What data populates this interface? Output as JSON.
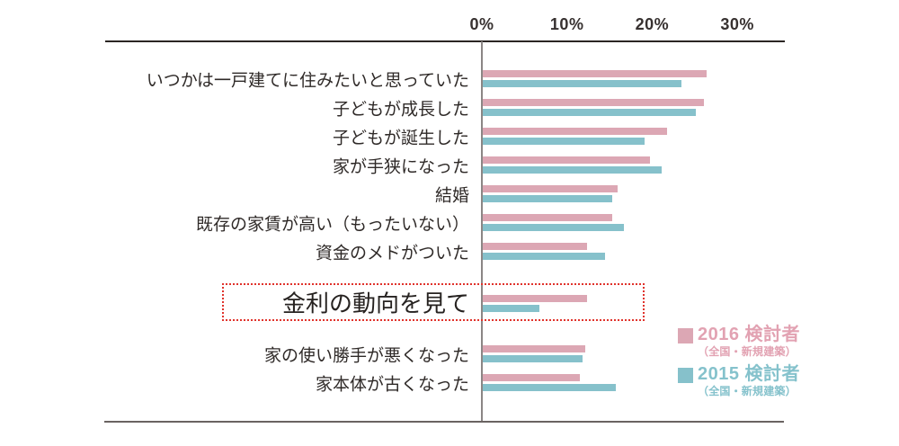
{
  "chart_data": {
    "type": "bar",
    "orientation": "horizontal",
    "title": "",
    "xlabel": "",
    "ylabel": "",
    "axis_ticks": [
      {
        "label": "0%",
        "value": 0
      },
      {
        "label": "10%",
        "value": 10
      },
      {
        "label": "20%",
        "value": 20
      },
      {
        "label": "30%",
        "value": 30
      }
    ],
    "xlim": [
      0,
      35.5
    ],
    "grid": false,
    "legend_position": "bottom-right",
    "categories": [
      "いつかは一戸建てに住みたいと思っていた",
      "子どもが成長した",
      "子どもが誕生した",
      "家が手狭になった",
      "結婚",
      "既存の家賃が高い（もったいない）",
      "資金のメドがついた",
      "金利の動向を見て",
      "家の使い勝手が悪くなった",
      "家本体が古くなった"
    ],
    "highlighted_category": "金利の動向を見て",
    "series": [
      {
        "name": "2016 検討者",
        "sub": "（全国・新規建築）",
        "color": "#dca7b4",
        "values": [
          26.3,
          26.0,
          21.6,
          19.6,
          15.8,
          15.2,
          12.3,
          12.2,
          12.0,
          11.4
        ]
      },
      {
        "name": "2015 検討者",
        "sub": "（全国・新規建築）",
        "color": "#86c1cb",
        "values": [
          23.3,
          25.0,
          19.0,
          21.0,
          15.2,
          16.6,
          14.4,
          6.7,
          11.7,
          15.6
        ]
      }
    ]
  },
  "legend": {
    "items": [
      {
        "label": "2016 検討者",
        "sub": "（全国・新規建築）",
        "color": "#dca7b4",
        "text_color": "#e2a2b2"
      },
      {
        "label": "2015 検討者",
        "sub": "（全国・新規建築）",
        "color": "#86c1cb",
        "text_color": "#85c2cc"
      }
    ]
  },
  "colors": {
    "bar_2016": "#dca7b4",
    "bar_2015": "#86c1cb",
    "highlight_border": "#e0332c",
    "frame_top": "#2b2523",
    "frame_bottom": "#6a6361",
    "axis_line": "#8b8685",
    "tick_text": "#373130",
    "label_text": "#2f2a28"
  }
}
